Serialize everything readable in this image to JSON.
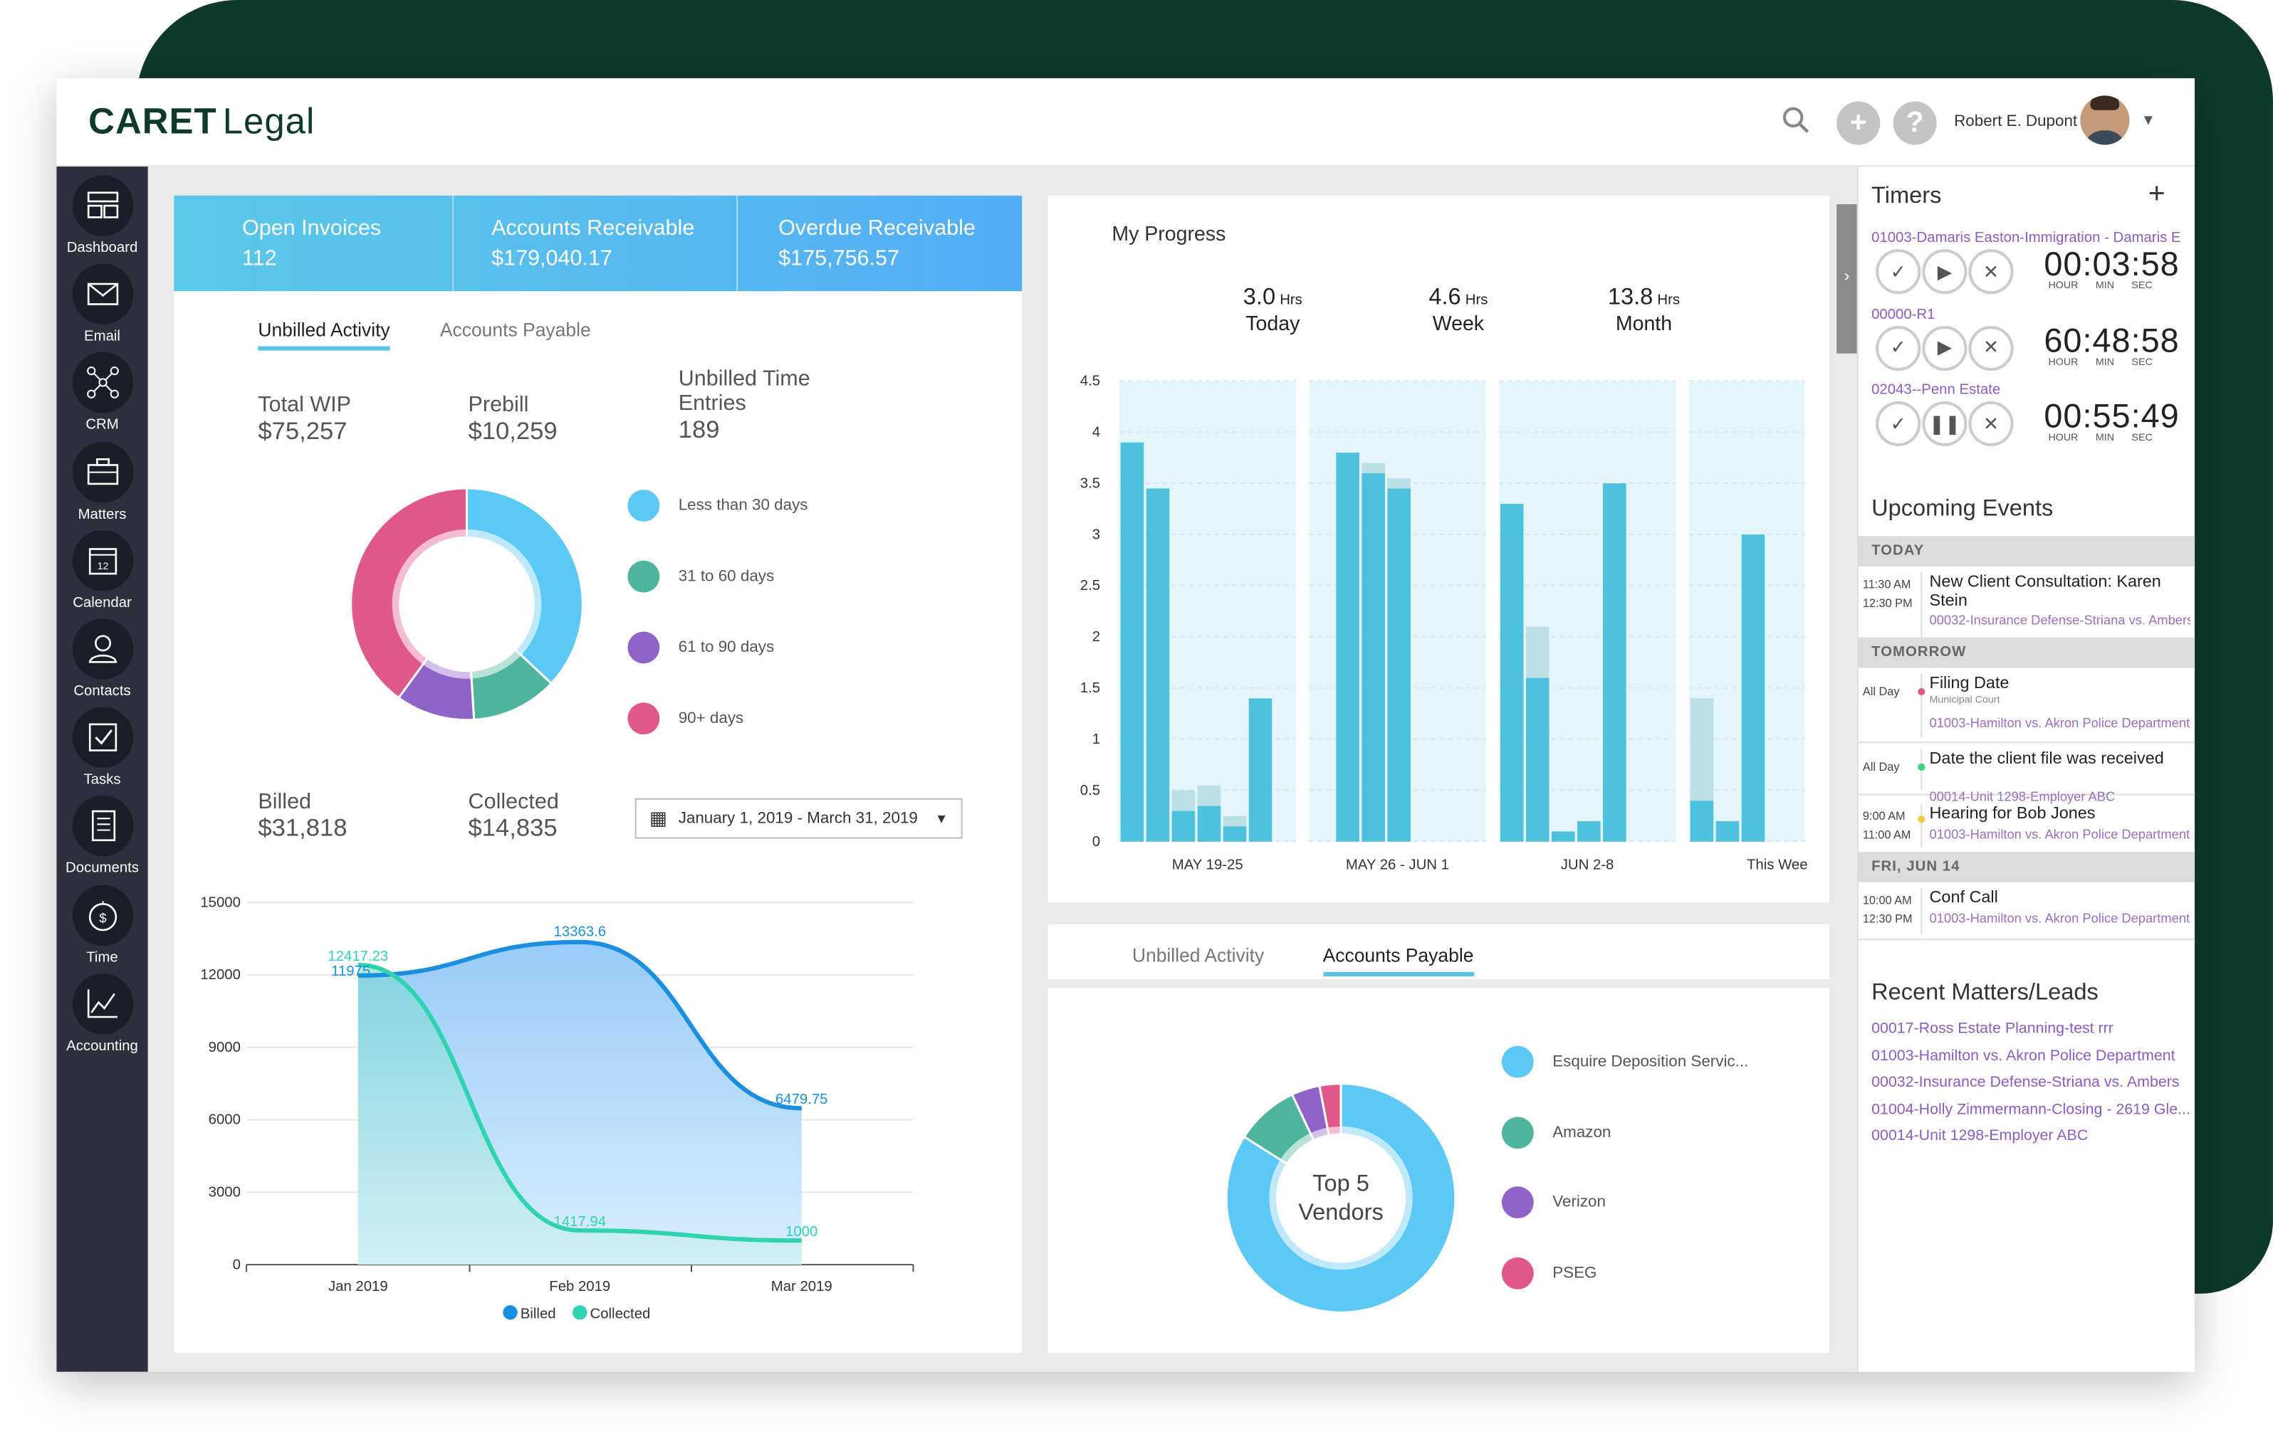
{
  "app": {
    "logo_bold": "CARET",
    "logo_light": "Legal",
    "user_name": "Robert E. Dupont"
  },
  "sidebar": {
    "items": [
      {
        "label": "Dashboard",
        "icon": "dashboard-icon"
      },
      {
        "label": "Email",
        "icon": "email-icon"
      },
      {
        "label": "CRM",
        "icon": "crm-icon"
      },
      {
        "label": "Matters",
        "icon": "briefcase-icon"
      },
      {
        "label": "Calendar",
        "icon": "calendar-icon"
      },
      {
        "label": "Contacts",
        "icon": "contacts-icon"
      },
      {
        "label": "Tasks",
        "icon": "tasks-icon"
      },
      {
        "label": "Documents",
        "icon": "documents-icon"
      },
      {
        "label": "Time",
        "icon": "stopwatch-icon"
      },
      {
        "label": "Accounting",
        "icon": "chart-icon"
      }
    ]
  },
  "kpis": [
    {
      "label": "Open Invoices",
      "value": "112"
    },
    {
      "label": "Accounts Receivable",
      "value": "$179,040.17"
    },
    {
      "label": "Overdue Receivable",
      "value": "$175,756.57"
    }
  ],
  "left_card": {
    "tabs": [
      "Unbilled Activity",
      "Accounts Payable"
    ],
    "total_wip_label": "Total WIP",
    "total_wip": "$75,257",
    "prebill_label": "Prebill",
    "prebill": "$10,259",
    "ute_label": "Unbilled Time Entries",
    "ute": "189",
    "aging": [
      {
        "label": "Less than 30 days",
        "color": "#5bc8f5",
        "value": 37
      },
      {
        "label": "31 to 60 days",
        "color": "#4eb59c",
        "value": 12
      },
      {
        "label": "61 to 90 days",
        "color": "#9063c9",
        "value": 11
      },
      {
        "label": "90+ days",
        "color": "#e0578a",
        "value": 40
      }
    ],
    "billed_label": "Billed",
    "billed": "$31,818",
    "collected_label": "Collected",
    "collected": "$14,835",
    "date_range": "January 1, 2019 - March 31, 2019"
  },
  "chart_data": [
    {
      "type": "area",
      "x": [
        "Jan 2019",
        "Feb 2019",
        "Mar 2019"
      ],
      "ylim": [
        0,
        15000
      ],
      "yticks": [
        "15000",
        "12000",
        "9000",
        "6000",
        "3000",
        "0"
      ],
      "series": [
        {
          "name": "Billed",
          "values": [
            11975,
            13363.6,
            6479.75
          ],
          "labels": [
            "11975",
            "13363.6",
            "6479.75"
          ],
          "color": "#1a8fe0"
        },
        {
          "name": "Collected",
          "values": [
            12417.23,
            1417.94,
            1000
          ],
          "labels": [
            "12417.23",
            "1417.94",
            "1000"
          ],
          "color": "#2fd3b0"
        }
      ]
    },
    {
      "type": "bar",
      "title": "My Progress",
      "categories": [
        "MAY 19-25",
        "MAY 26 - JUN 1",
        "JUN 2-8",
        "This Wee"
      ],
      "ylim": [
        0,
        4.5
      ],
      "yticks": [
        "4.5",
        "4",
        "3.5",
        "3",
        "2.5",
        "2",
        "1.5",
        "1",
        "0.5",
        "0"
      ],
      "groups": [
        [
          [
            3.9,
            0
          ],
          [
            3.45,
            0
          ],
          [
            0.3,
            0.2
          ],
          [
            0.35,
            0.2
          ],
          [
            0.15,
            0.1
          ],
          [
            1.4,
            0
          ]
        ],
        [
          [
            0,
            0
          ],
          [
            3.8,
            0
          ],
          [
            3.6,
            0.1
          ],
          [
            3.45,
            0.1
          ],
          [
            0,
            0
          ],
          [
            0,
            0
          ]
        ],
        [
          [
            3.3,
            0
          ],
          [
            1.6,
            0.5
          ],
          [
            0.1,
            0
          ],
          [
            0.2,
            0
          ],
          [
            3.5,
            0
          ],
          [
            0,
            0
          ]
        ],
        [
          [
            0.4,
            1
          ],
          [
            0.2,
            0
          ],
          [
            3,
            0
          ],
          [
            0,
            0
          ],
          [
            0,
            0
          ],
          [
            0,
            0
          ]
        ]
      ]
    },
    {
      "type": "pie",
      "title": "Top 5 Vendors",
      "slices": [
        {
          "label": "Esquire Deposition Servic...",
          "color": "#5bc8f5",
          "value": 84
        },
        {
          "label": "Amazon",
          "color": "#4eb59c",
          "value": 9
        },
        {
          "label": "Verizon",
          "color": "#9063c9",
          "value": 4
        },
        {
          "label": "PSEG",
          "color": "#e0578a",
          "value": 3
        }
      ]
    }
  ],
  "progress": {
    "title": "My Progress",
    "stats": [
      {
        "value": "3.0",
        "unit": "Hrs",
        "label": "Today"
      },
      {
        "value": "4.6",
        "unit": "Hrs",
        "label": "Week"
      },
      {
        "value": "13.8",
        "unit": "Hrs",
        "label": "Month"
      }
    ]
  },
  "ap_card": {
    "tabs": [
      "Unbilled Activity",
      "Accounts Payable"
    ],
    "center": "Top 5 Vendors"
  },
  "timers": {
    "title": "Timers",
    "items": [
      {
        "matter": "01003-Damaris Easton-Immigration - Damaris E",
        "time": "00:03:58",
        "state": "play"
      },
      {
        "matter": "00000-R1",
        "time": "60:48:58",
        "state": "play"
      },
      {
        "matter": "02043--Penn Estate",
        "time": "00:55:49",
        "state": "pause"
      }
    ],
    "units": [
      "HOUR",
      "MIN",
      "SEC"
    ]
  },
  "events": {
    "title": "Upcoming Events",
    "groups": [
      {
        "header": "TODAY",
        "items": [
          {
            "t1": "11:30 AM",
            "t2": "12:30 PM",
            "title": "New Client Consultation: Karen Stein",
            "sub": "",
            "matter": "00032-Insurance Defense-Striana vs. Ambers"
          }
        ]
      },
      {
        "header": "TOMORROW",
        "items": [
          {
            "t1": "All Day",
            "t2": "",
            "title": "Filing Date",
            "sub": "Municipal Court",
            "matter": "01003-Hamilton vs. Akron Police Department"
          },
          {
            "t1": "All Day",
            "t2": "",
            "title": "Date the client file was received",
            "sub": "",
            "matter": "00014-Unit 1298-Employer ABC"
          },
          {
            "t1": "9:00 AM",
            "t2": "11:00 AM",
            "title": "Hearing for Bob Jones",
            "sub": "",
            "matter": "01003-Hamilton vs. Akron Police Department"
          }
        ]
      },
      {
        "header": "FRI, JUN 14",
        "items": [
          {
            "t1": "10:00 AM",
            "t2": "12:30 PM",
            "title": "Conf Call",
            "sub": "",
            "matter": "01003-Hamilton vs. Akron Police Department"
          }
        ]
      }
    ]
  },
  "recent": {
    "title": "Recent Matters/Leads",
    "items": [
      "00017-Ross Estate Planning-test rrr",
      "01003-Hamilton vs. Akron Police Department",
      "00032-Insurance Defense-Striana vs. Ambers",
      "01004-Holly Zimmermann-Closing - 2619 Gle...",
      "00014-Unit 1298-Employer ABC"
    ]
  }
}
